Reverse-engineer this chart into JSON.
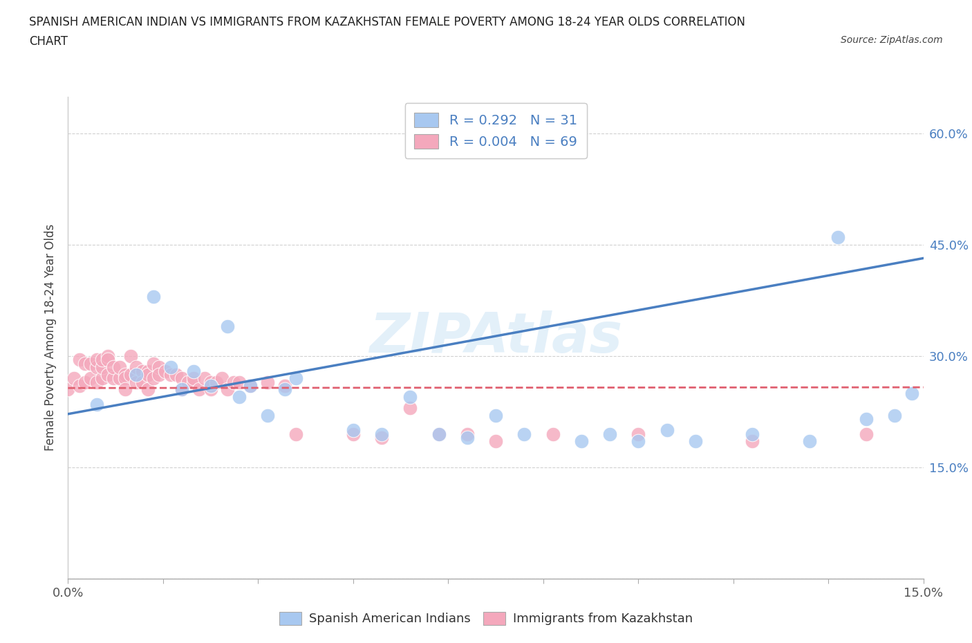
{
  "title_line1": "SPANISH AMERICAN INDIAN VS IMMIGRANTS FROM KAZAKHSTAN FEMALE POVERTY AMONG 18-24 YEAR OLDS CORRELATION",
  "title_line2": "CHART",
  "source_text": "Source: ZipAtlas.com",
  "ylabel": "Female Poverty Among 18-24 Year Olds",
  "legend_label1": "Spanish American Indians",
  "legend_label2": "Immigrants from Kazakhstan",
  "r1": 0.292,
  "n1": 31,
  "r2": 0.004,
  "n2": 69,
  "color1": "#a8c8f0",
  "color2": "#f4a8bc",
  "line1_color": "#4a7fc1",
  "line2_color": "#e06070",
  "xlim": [
    0.0,
    0.15
  ],
  "ylim": [
    0.0,
    0.65
  ],
  "ytick_positions": [
    0.0,
    0.15,
    0.3,
    0.45,
    0.6
  ],
  "ytick_labels_right": [
    "",
    "15.0%",
    "30.0%",
    "45.0%",
    "60.0%"
  ],
  "blue_x": [
    0.005,
    0.012,
    0.015,
    0.018,
    0.02,
    0.022,
    0.025,
    0.028,
    0.03,
    0.032,
    0.035,
    0.038,
    0.04,
    0.05,
    0.055,
    0.06,
    0.065,
    0.07,
    0.075,
    0.08,
    0.09,
    0.095,
    0.1,
    0.105,
    0.11,
    0.12,
    0.13,
    0.135,
    0.14,
    0.145,
    0.148
  ],
  "blue_y": [
    0.235,
    0.275,
    0.38,
    0.285,
    0.255,
    0.28,
    0.26,
    0.34,
    0.245,
    0.26,
    0.22,
    0.255,
    0.27,
    0.2,
    0.195,
    0.245,
    0.195,
    0.19,
    0.22,
    0.195,
    0.185,
    0.195,
    0.185,
    0.2,
    0.185,
    0.195,
    0.185,
    0.46,
    0.215,
    0.22,
    0.25
  ],
  "pink_x": [
    0.0,
    0.001,
    0.002,
    0.002,
    0.003,
    0.003,
    0.004,
    0.004,
    0.005,
    0.005,
    0.005,
    0.006,
    0.006,
    0.006,
    0.007,
    0.007,
    0.007,
    0.008,
    0.008,
    0.009,
    0.009,
    0.01,
    0.01,
    0.01,
    0.011,
    0.011,
    0.012,
    0.012,
    0.012,
    0.013,
    0.013,
    0.014,
    0.014,
    0.014,
    0.015,
    0.015,
    0.016,
    0.016,
    0.017,
    0.018,
    0.019,
    0.02,
    0.02,
    0.021,
    0.022,
    0.022,
    0.023,
    0.024,
    0.025,
    0.025,
    0.026,
    0.027,
    0.028,
    0.029,
    0.03,
    0.032,
    0.035,
    0.038,
    0.04,
    0.05,
    0.055,
    0.06,
    0.065,
    0.07,
    0.075,
    0.085,
    0.1,
    0.12,
    0.14
  ],
  "pink_y": [
    0.255,
    0.27,
    0.26,
    0.295,
    0.265,
    0.29,
    0.27,
    0.29,
    0.265,
    0.285,
    0.295,
    0.27,
    0.285,
    0.295,
    0.3,
    0.275,
    0.295,
    0.27,
    0.285,
    0.27,
    0.285,
    0.275,
    0.27,
    0.255,
    0.275,
    0.3,
    0.275,
    0.265,
    0.285,
    0.28,
    0.265,
    0.28,
    0.275,
    0.255,
    0.27,
    0.29,
    0.285,
    0.275,
    0.28,
    0.275,
    0.275,
    0.255,
    0.27,
    0.265,
    0.265,
    0.27,
    0.255,
    0.27,
    0.255,
    0.265,
    0.265,
    0.27,
    0.255,
    0.265,
    0.265,
    0.26,
    0.265,
    0.26,
    0.195,
    0.195,
    0.19,
    0.23,
    0.195,
    0.195,
    0.185,
    0.195,
    0.195,
    0.185,
    0.195
  ],
  "blue_line_x0": 0.0,
  "blue_line_x1": 0.15,
  "blue_line_y0": 0.222,
  "blue_line_y1": 0.432,
  "pink_line_x0": 0.0,
  "pink_line_x1": 0.15,
  "pink_line_y0": 0.257,
  "pink_line_y1": 0.258,
  "background_color": "#ffffff",
  "grid_color": "#cccccc"
}
